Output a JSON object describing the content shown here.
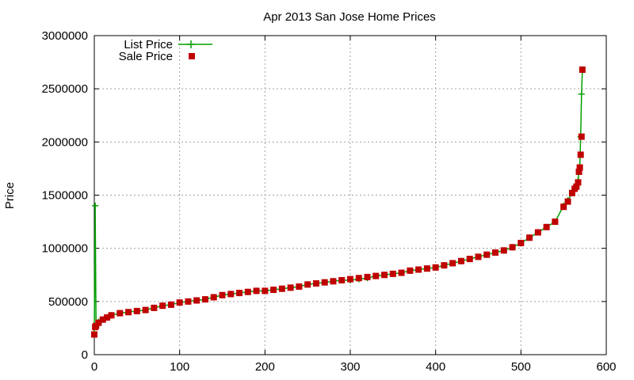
{
  "chart_data": {
    "type": "line",
    "title": "Apr 2013 San Jose Home Prices",
    "xlabel": "",
    "ylabel": "Price",
    "xlim": [
      0,
      600
    ],
    "ylim": [
      0,
      3000000
    ],
    "xticks": [
      "0",
      "100",
      "200",
      "300",
      "400",
      "500",
      "600"
    ],
    "yticks": [
      "0",
      "500000",
      "1000000",
      "1500000",
      "2000000",
      "2500000",
      "3000000"
    ],
    "grid": true,
    "legend_position": "top-left",
    "series_styles": [
      {
        "name": "List Price",
        "color": "#00a000",
        "style": "line-with-plus-markers"
      },
      {
        "name": "Sale Price",
        "color": "#c00000",
        "style": "square-markers"
      }
    ],
    "x": [
      0,
      1,
      2,
      5,
      10,
      15,
      20,
      30,
      40,
      50,
      60,
      70,
      80,
      90,
      100,
      110,
      120,
      130,
      140,
      150,
      160,
      170,
      180,
      190,
      200,
      210,
      220,
      230,
      240,
      250,
      260,
      270,
      280,
      290,
      300,
      310,
      320,
      330,
      340,
      350,
      360,
      370,
      380,
      390,
      400,
      410,
      420,
      430,
      440,
      450,
      460,
      470,
      480,
      490,
      500,
      510,
      520,
      530,
      540,
      550,
      555,
      560,
      563,
      565,
      567,
      568,
      569,
      570,
      571,
      572
    ],
    "series": [
      {
        "name": "List Price",
        "values": [
          190000,
          1400000,
          270000,
          310000,
          330000,
          350000,
          370000,
          390000,
          400000,
          410000,
          420000,
          440000,
          460000,
          470000,
          490000,
          500000,
          510000,
          520000,
          540000,
          560000,
          570000,
          580000,
          590000,
          600000,
          600000,
          610000,
          620000,
          630000,
          640000,
          660000,
          670000,
          680000,
          690000,
          700000,
          700000,
          710000,
          720000,
          740000,
          750000,
          760000,
          770000,
          790000,
          800000,
          810000,
          820000,
          840000,
          860000,
          880000,
          900000,
          920000,
          940000,
          960000,
          980000,
          1010000,
          1050000,
          1100000,
          1150000,
          1200000,
          1250000,
          1400000,
          1450000,
          1520000,
          1560000,
          1580000,
          1640000,
          1720000,
          1780000,
          2050000,
          2450000,
          2680000
        ]
      },
      {
        "name": "Sale Price",
        "values": [
          190000,
          260000,
          270000,
          300000,
          330000,
          350000,
          370000,
          390000,
          400000,
          410000,
          420000,
          440000,
          460000,
          470000,
          490000,
          500000,
          510000,
          520000,
          540000,
          560000,
          570000,
          580000,
          590000,
          600000,
          600000,
          610000,
          620000,
          630000,
          640000,
          660000,
          670000,
          680000,
          690000,
          700000,
          710000,
          720000,
          730000,
          740000,
          750000,
          760000,
          770000,
          790000,
          800000,
          810000,
          820000,
          840000,
          860000,
          880000,
          900000,
          920000,
          940000,
          960000,
          980000,
          1010000,
          1050000,
          1100000,
          1150000,
          1200000,
          1250000,
          1390000,
          1440000,
          1520000,
          1560000,
          1580000,
          1620000,
          1720000,
          1760000,
          1880000,
          2050000,
          2680000
        ]
      }
    ]
  }
}
